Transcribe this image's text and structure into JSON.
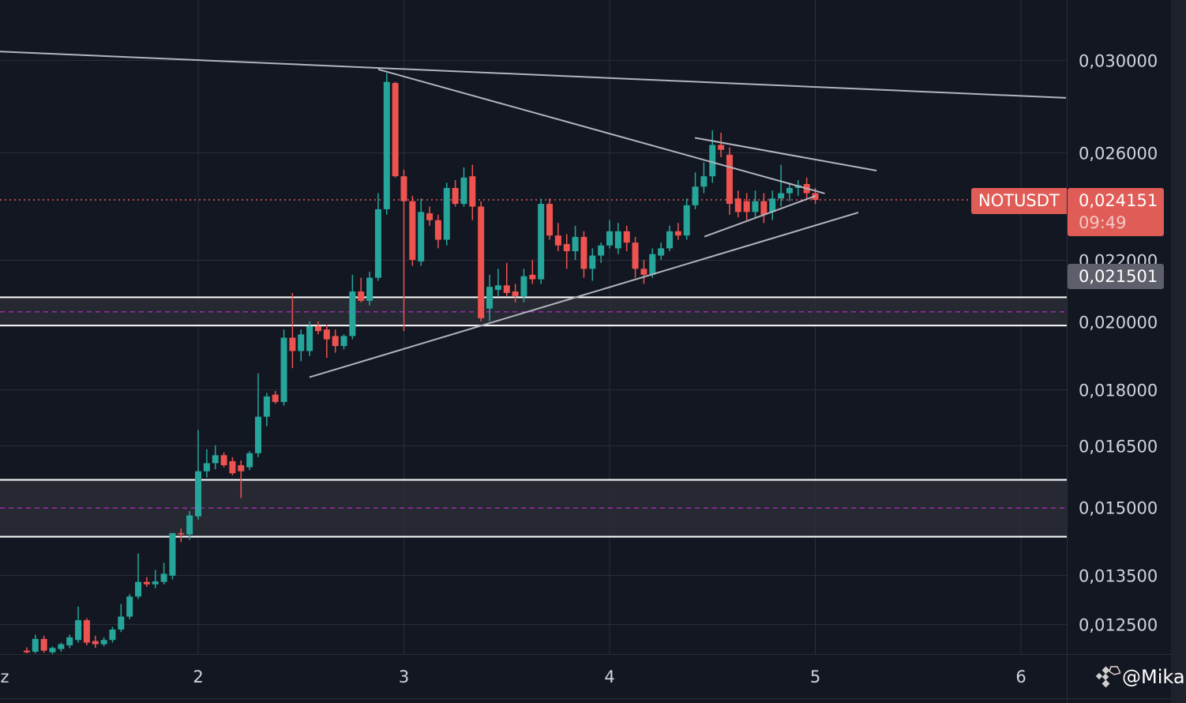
{
  "chart_data": {
    "type": "candlestick",
    "symbol": "NOTUSDT",
    "interval": "1h",
    "y_scale": "log",
    "ylim": [
      0.01185,
      0.0312
    ],
    "xlim": [
      1.036,
      6.22
    ],
    "x_ticks": [
      {
        "v": 1.0,
        "label": "z"
      },
      {
        "v": 2,
        "label": "2"
      },
      {
        "v": 3,
        "label": "3"
      },
      {
        "v": 4,
        "label": "4"
      },
      {
        "v": 5,
        "label": "5"
      },
      {
        "v": 6,
        "label": "6"
      }
    ],
    "y_ticks": [
      {
        "v": 0.03,
        "label": "0,030000"
      },
      {
        "v": 0.026,
        "label": "0,026000"
      },
      {
        "v": 0.022,
        "label": "0,022000"
      },
      {
        "v": 0.02,
        "label": "0,020000"
      },
      {
        "v": 0.018,
        "label": "0,018000"
      },
      {
        "v": 0.0165,
        "label": "0,016500"
      },
      {
        "v": 0.015,
        "label": "0,015000"
      },
      {
        "v": 0.0135,
        "label": "0,013500"
      },
      {
        "v": 0.0125,
        "label": "0,012500"
      }
    ],
    "grid": true,
    "colors": {
      "up": "#26a69a",
      "down": "#ef5350",
      "background": "#131722",
      "grid": "#2a2e39",
      "trendline": "#b2b5be",
      "zone_border": "#ffffff",
      "zone_fill": "#2a2d35",
      "zone_mid": "#9c27b0",
      "last_price": "#e05d57"
    },
    "last_price": {
      "value": 0.024151,
      "label": "0,024151",
      "countdown": "09:49"
    },
    "crosshair_price": {
      "value": 0.021501,
      "label": "0,021501"
    },
    "zones": [
      {
        "top": 0.02076,
        "bottom": 0.01987,
        "mid": 0.0203
      },
      {
        "top": 0.01564,
        "bottom": 0.01432,
        "mid": 0.01497
      }
    ],
    "trendlines": [
      {
        "from": [
          1.036,
          0.0304
        ],
        "to": [
          6.219,
          0.02829
        ]
      },
      {
        "from": [
          2.875,
          0.02957
        ],
        "to": [
          5.046,
          0.02439
        ]
      },
      {
        "from": [
          4.415,
          0.02659
        ],
        "to": [
          5.298,
          0.02527
        ]
      },
      {
        "from": [
          2.541,
          0.01834
        ],
        "to": [
          5.209,
          0.02368
        ]
      },
      {
        "from": [
          4.461,
          0.02281
        ],
        "to": [
          5.002,
          0.0243
        ]
      }
    ],
    "candles_ohlc": [
      [
        0.012,
        0.01206,
        0.01195,
        0.01197
      ],
      [
        0.01198,
        0.0123,
        0.01195,
        0.01222
      ],
      [
        0.01222,
        0.01228,
        0.01196,
        0.012
      ],
      [
        0.01197,
        0.01208,
        0.01193,
        0.01205
      ],
      [
        0.01203,
        0.01215,
        0.01198,
        0.01212
      ],
      [
        0.0121,
        0.0123,
        0.01205,
        0.01225
      ],
      [
        0.0122,
        0.01285,
        0.01215,
        0.01258
      ],
      [
        0.01258,
        0.01262,
        0.0121,
        0.01215
      ],
      [
        0.01218,
        0.01228,
        0.01205,
        0.01212
      ],
      [
        0.01212,
        0.01225,
        0.01208,
        0.0122
      ],
      [
        0.0122,
        0.01245,
        0.01215,
        0.0124
      ],
      [
        0.0124,
        0.0129,
        0.01235,
        0.01265
      ],
      [
        0.01265,
        0.0131,
        0.0126,
        0.01305
      ],
      [
        0.01305,
        0.01395,
        0.013,
        0.01335
      ],
      [
        0.01335,
        0.01345,
        0.01325,
        0.0133
      ],
      [
        0.0133,
        0.0136,
        0.01322,
        0.01336
      ],
      [
        0.01335,
        0.01375,
        0.0133,
        0.01352
      ],
      [
        0.01348,
        0.0144,
        0.0134,
        0.0144
      ],
      [
        0.0144,
        0.0145,
        0.0142,
        0.01437
      ],
      [
        0.01437,
        0.0149,
        0.01425,
        0.0148
      ],
      [
        0.01478,
        0.0169,
        0.0147,
        0.01585
      ],
      [
        0.01585,
        0.0164,
        0.0157,
        0.01605
      ],
      [
        0.01605,
        0.0165,
        0.0159,
        0.01625
      ],
      [
        0.01625,
        0.01632,
        0.01595,
        0.016
      ],
      [
        0.0161,
        0.0162,
        0.01575,
        0.0158
      ],
      [
        0.016,
        0.01612,
        0.0152,
        0.01585
      ],
      [
        0.01595,
        0.01635,
        0.01588,
        0.0163
      ],
      [
        0.0163,
        0.01845,
        0.0162,
        0.01725
      ],
      [
        0.01725,
        0.0179,
        0.017,
        0.0178
      ],
      [
        0.01785,
        0.01795,
        0.0176,
        0.01765
      ],
      [
        0.01765,
        0.01975,
        0.01755,
        0.0195
      ],
      [
        0.0195,
        0.0209,
        0.0186,
        0.0191
      ],
      [
        0.0191,
        0.01975,
        0.0188,
        0.0196
      ],
      [
        0.0191,
        0.02,
        0.01895,
        0.01985
      ],
      [
        0.01985,
        0.02,
        0.0196,
        0.0197
      ],
      [
        0.01975,
        0.0199,
        0.0189,
        0.01945
      ],
      [
        0.01955,
        0.01975,
        0.01905,
        0.01925
      ],
      [
        0.01925,
        0.0196,
        0.01915,
        0.01955
      ],
      [
        0.01955,
        0.0215,
        0.01945,
        0.02095
      ],
      [
        0.02095,
        0.0214,
        0.0206,
        0.02065
      ],
      [
        0.02065,
        0.0216,
        0.0205,
        0.0214
      ],
      [
        0.0214,
        0.0244,
        0.0213,
        0.0238
      ],
      [
        0.0238,
        0.0294,
        0.0236,
        0.029
      ],
      [
        0.02895,
        0.029,
        0.025,
        0.02505
      ],
      [
        0.02505,
        0.0253,
        0.0197,
        0.0241
      ],
      [
        0.0241,
        0.0243,
        0.0218,
        0.022
      ],
      [
        0.02195,
        0.0242,
        0.0218,
        0.0237
      ],
      [
        0.02365,
        0.0239,
        0.0232,
        0.0234
      ],
      [
        0.0234,
        0.0236,
        0.0224,
        0.0227
      ],
      [
        0.0227,
        0.0248,
        0.0225,
        0.0246
      ],
      [
        0.0246,
        0.0249,
        0.0239,
        0.024
      ],
      [
        0.024,
        0.0254,
        0.0239,
        0.025
      ],
      [
        0.02505,
        0.0255,
        0.0234,
        0.0239
      ],
      [
        0.0239,
        0.0241,
        0.02,
        0.0201
      ],
      [
        0.0204,
        0.0215,
        0.02,
        0.0211
      ],
      [
        0.021,
        0.0217,
        0.0208,
        0.02115
      ],
      [
        0.02115,
        0.0219,
        0.0208,
        0.0209
      ],
      [
        0.02095,
        0.0212,
        0.0206,
        0.0208
      ],
      [
        0.0208,
        0.0217,
        0.0206,
        0.02145
      ],
      [
        0.0215,
        0.022,
        0.0212,
        0.02135
      ],
      [
        0.02135,
        0.0242,
        0.0212,
        0.024
      ],
      [
        0.024,
        0.0242,
        0.0227,
        0.02285
      ],
      [
        0.02285,
        0.0233,
        0.0223,
        0.0225
      ],
      [
        0.02255,
        0.0229,
        0.0217,
        0.0223
      ],
      [
        0.0223,
        0.0232,
        0.022,
        0.0228
      ],
      [
        0.0228,
        0.023,
        0.0214,
        0.0217
      ],
      [
        0.0217,
        0.0224,
        0.0213,
        0.02215
      ],
      [
        0.02215,
        0.0226,
        0.0219,
        0.0225
      ],
      [
        0.0225,
        0.0234,
        0.0224,
        0.023
      ],
      [
        0.0224,
        0.0233,
        0.0222,
        0.023
      ],
      [
        0.023,
        0.0232,
        0.0223,
        0.0226
      ],
      [
        0.0226,
        0.0228,
        0.0214,
        0.0217
      ],
      [
        0.0217,
        0.022,
        0.0212,
        0.0215
      ],
      [
        0.0215,
        0.0224,
        0.0214,
        0.0222
      ],
      [
        0.02215,
        0.0226,
        0.022,
        0.0224
      ],
      [
        0.0224,
        0.0232,
        0.0223,
        0.023
      ],
      [
        0.023,
        0.0233,
        0.0227,
        0.02285
      ],
      [
        0.02285,
        0.0242,
        0.0227,
        0.02395
      ],
      [
        0.02395,
        0.0252,
        0.0238,
        0.02465
      ],
      [
        0.02465,
        0.0256,
        0.0244,
        0.02505
      ],
      [
        0.02505,
        0.0269,
        0.0248,
        0.0263
      ],
      [
        0.0263,
        0.0268,
        0.0258,
        0.0261
      ],
      [
        0.0259,
        0.0262,
        0.0236,
        0.024
      ],
      [
        0.0242,
        0.0245,
        0.0235,
        0.0237
      ],
      [
        0.0241,
        0.0244,
        0.0234,
        0.0237
      ],
      [
        0.0237,
        0.0245,
        0.0235,
        0.0241
      ],
      [
        0.0241,
        0.0244,
        0.0233,
        0.0236
      ],
      [
        0.0237,
        0.0245,
        0.0234,
        0.0242
      ],
      [
        0.0242,
        0.0255,
        0.0239,
        0.0244
      ],
      [
        0.0244,
        0.0248,
        0.0241,
        0.0246
      ],
      [
        0.0246,
        0.0249,
        0.0243,
        0.0247
      ],
      [
        0.02475,
        0.025,
        0.0242,
        0.0244
      ],
      [
        0.0244,
        0.0246,
        0.024,
        0.02415
      ]
    ],
    "candle_times_last": 5.0
  },
  "watermark": {
    "text": "@Mika",
    "icon": "binance-logo-icon"
  }
}
